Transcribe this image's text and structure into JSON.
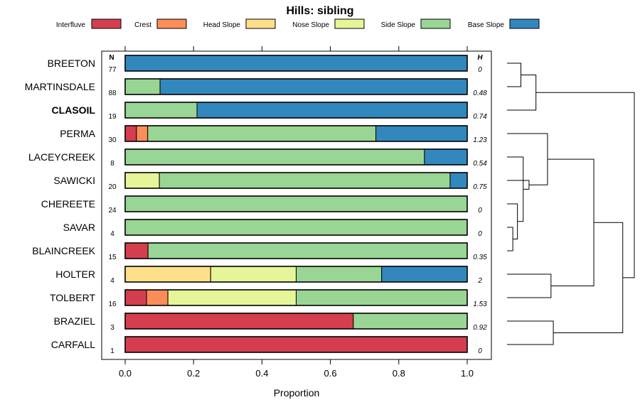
{
  "chart_data": {
    "type": "bar",
    "stacked": true,
    "orientation": "horizontal",
    "title": "Hills: sibling",
    "xlabel": "Proportion",
    "xlim": [
      0,
      1
    ],
    "xticks": [
      "0.0",
      "0.2",
      "0.4",
      "0.6",
      "0.8",
      "1.0"
    ],
    "n_header": "N",
    "h_header": "H",
    "legend": [
      {
        "name": "Interfluve",
        "color": "#D53E4F"
      },
      {
        "name": "Crest",
        "color": "#FC8D59"
      },
      {
        "name": "Head Slope",
        "color": "#FEE08B"
      },
      {
        "name": "Nose Slope",
        "color": "#E6F598"
      },
      {
        "name": "Side Slope",
        "color": "#99D594"
      },
      {
        "name": "Base Slope",
        "color": "#3288BD"
      }
    ],
    "rows": [
      {
        "name": "BREETON",
        "n": "77",
        "h": "0",
        "bold": false,
        "values": [
          0,
          0,
          0,
          0,
          0,
          1.0
        ]
      },
      {
        "name": "MARTINSDALE",
        "n": "88",
        "h": "0.48",
        "bold": false,
        "values": [
          0,
          0,
          0,
          0,
          0.102,
          0.898
        ]
      },
      {
        "name": "CLASOIL",
        "n": "19",
        "h": "0.74",
        "bold": true,
        "values": [
          0,
          0,
          0,
          0,
          0.21,
          0.79
        ]
      },
      {
        "name": "PERMA",
        "n": "30",
        "h": "1.23",
        "bold": false,
        "values": [
          0.033,
          0.033,
          0,
          0,
          0.667,
          0.267
        ]
      },
      {
        "name": "LACEYCREEK",
        "n": "8",
        "h": "0.54",
        "bold": false,
        "values": [
          0,
          0,
          0,
          0,
          0.875,
          0.125
        ]
      },
      {
        "name": "SAWICKI",
        "n": "20",
        "h": "0.75",
        "bold": false,
        "values": [
          0,
          0,
          0,
          0.1,
          0.85,
          0.05
        ]
      },
      {
        "name": "CHEREETE",
        "n": "24",
        "h": "0",
        "bold": false,
        "values": [
          0,
          0,
          0,
          0,
          1.0,
          0
        ]
      },
      {
        "name": "SAVAR",
        "n": "4",
        "h": "0",
        "bold": false,
        "values": [
          0,
          0,
          0,
          0,
          1.0,
          0
        ]
      },
      {
        "name": "BLAINCREEK",
        "n": "15",
        "h": "0.35",
        "bold": false,
        "values": [
          0.067,
          0,
          0,
          0,
          0.933,
          0
        ]
      },
      {
        "name": "HOLTER",
        "n": "4",
        "h": "2",
        "bold": false,
        "values": [
          0,
          0,
          0.25,
          0.25,
          0.25,
          0.25
        ]
      },
      {
        "name": "TOLBERT",
        "n": "16",
        "h": "1.53",
        "bold": false,
        "values": [
          0.0625,
          0.0625,
          0,
          0.375,
          0.5,
          0
        ]
      },
      {
        "name": "BRAZIEL",
        "n": "3",
        "h": "0.92",
        "bold": false,
        "values": [
          0.667,
          0,
          0,
          0,
          0.333,
          0
        ]
      },
      {
        "name": "CARFALL",
        "n": "1",
        "h": "0",
        "bold": false,
        "values": [
          1.0,
          0,
          0,
          0,
          0,
          0
        ]
      }
    ],
    "dendrogram": {
      "merges": [
        [
          0,
          1,
          0.12
        ],
        [
          13,
          2,
          0.25
        ],
        [
          7,
          8,
          0.05
        ],
        [
          15,
          6,
          0.09
        ],
        [
          16,
          4,
          0.14
        ],
        [
          17,
          5,
          0.19
        ],
        [
          18,
          3,
          0.35
        ],
        [
          9,
          10,
          0.38
        ],
        [
          19,
          20,
          0.75
        ],
        [
          11,
          12,
          0.4
        ],
        [
          21,
          22,
          1.0
        ],
        [
          14,
          23,
          1.1
        ]
      ],
      "max_height": 1.1
    }
  }
}
